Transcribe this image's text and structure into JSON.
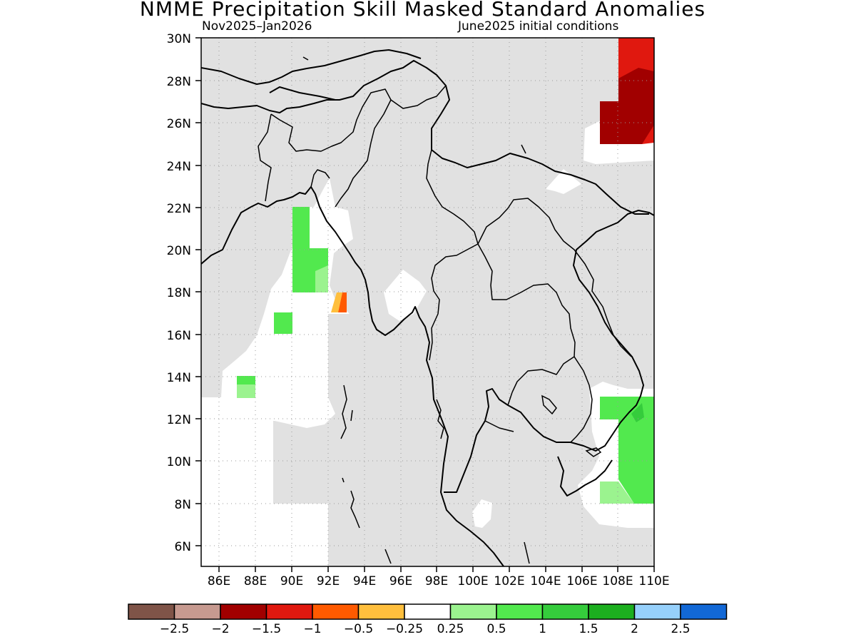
{
  "title": "NMME Precipitation Skill Masked Standard Anomalies",
  "subtitle_left": "Nov2025–Jan2026",
  "subtitle_right": "June2025 initial conditions",
  "map": {
    "lat_labels": [
      "30N",
      "28N",
      "26N",
      "24N",
      "22N",
      "20N",
      "18N",
      "16N",
      "14N",
      "12N",
      "10N",
      "8N",
      "6N"
    ],
    "lon_labels": [
      "86E",
      "88E",
      "90E",
      "92E",
      "94E",
      "96E",
      "98E",
      "100E",
      "102E",
      "104E",
      "106E",
      "108E",
      "110E"
    ],
    "lat_range": [
      5,
      30
    ],
    "lon_range": [
      85,
      110
    ],
    "grid": "dotted",
    "colors": {
      "masked": "#e1e1e1",
      "land_outline": "#000000",
      "neutral": "#ffffff"
    }
  },
  "colorbar": {
    "colors": [
      "#7f5448",
      "#c79a90",
      "#a10000",
      "#e0180f",
      "#ff5a00",
      "#ffbf3d",
      "#ffffff",
      "#9bf38f",
      "#52e94e",
      "#35cc3c",
      "#1caf1f",
      "#96d0fb",
      "#1268d6"
    ],
    "labels": [
      "−2.5",
      "−2",
      "−1.5",
      "−1",
      "−0.5",
      "−0.25",
      "0.25",
      "0.5",
      "1",
      "1.5",
      "2",
      "2.5"
    ]
  }
}
